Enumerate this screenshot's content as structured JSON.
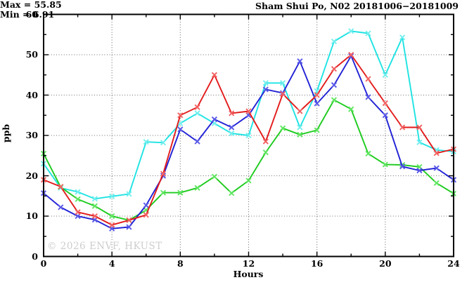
{
  "title": "Sham Shui Po, N02 20181006−20181009",
  "annotations": {
    "max_label": "Max = 55.85",
    "min_label": "Min =  6.91"
  },
  "watermark": "© 2026 ENVF, HKUST",
  "chart_data": {
    "type": "line",
    "title": "Sham Shui Po, N02 20181006−20181009",
    "xlabel": "Hours",
    "ylabel": "ppb",
    "xlim": [
      0,
      24
    ],
    "ylim": [
      0,
      60
    ],
    "x_major_ticks": [
      0,
      4,
      8,
      12,
      16,
      20,
      24
    ],
    "x_minor_ticks": [
      2,
      6,
      10,
      14,
      18,
      22
    ],
    "y_major_ticks": [
      0,
      10,
      20,
      30,
      40,
      50,
      60
    ],
    "y_minor_ticks": [
      5,
      15,
      25,
      35,
      45,
      55
    ],
    "grid": "dotted gray at major ticks, mirrored inward ticks on all four sides",
    "legend_position": "none",
    "stat_max": 55.85,
    "stat_min": 6.91,
    "x": [
      0,
      1,
      2,
      3,
      4,
      5,
      6,
      7,
      8,
      9,
      10,
      11,
      12,
      13,
      14,
      15,
      16,
      17,
      18,
      19,
      20,
      21,
      22,
      23,
      24
    ],
    "series": [
      {
        "name": "series-cyan",
        "color": "#1fe3e3",
        "marker_color": "#73eeee",
        "marker": "x",
        "values": [
          23,
          17,
          16,
          14.3,
          14.9,
          15.5,
          28.4,
          28.2,
          33,
          35.5,
          33,
          30.5,
          30,
          43,
          43,
          32,
          41,
          53.3,
          55.85,
          55.3,
          45,
          54.3,
          28.3,
          26.4,
          26
        ]
      },
      {
        "name": "series-green",
        "color": "#1ecb1e",
        "marker_color": "#5fe65f",
        "marker": "x",
        "values": [
          25.5,
          17.2,
          14.2,
          12.5,
          10,
          9,
          11.5,
          15.8,
          15.8,
          17,
          19.8,
          15.7,
          18.8,
          25.8,
          31.8,
          30.2,
          31.3,
          38.8,
          36.5,
          25.5,
          22.8,
          22.7,
          22.2,
          18.2,
          15.6
        ]
      },
      {
        "name": "series-blue",
        "color": "#2121d6",
        "marker_color": "#5858e8",
        "marker": "x",
        "values": [
          15.7,
          12.2,
          10,
          9.1,
          6.91,
          7.3,
          12.7,
          20,
          31.5,
          28.5,
          34,
          32,
          35,
          41.4,
          40.5,
          48.4,
          37.9,
          42.5,
          49.7,
          39.5,
          35,
          22.3,
          21.3,
          21.9,
          19
        ]
      },
      {
        "name": "series-red",
        "color": "#e31a1a",
        "marker_color": "#f26262",
        "marker": "x",
        "values": [
          19,
          17.3,
          11,
          10,
          7.8,
          9,
          10.3,
          20.5,
          35,
          37,
          45,
          35.5,
          36,
          28.5,
          40.3,
          36,
          40,
          46.5,
          50,
          44,
          38,
          32,
          32,
          25.6,
          26.6
        ]
      }
    ]
  }
}
